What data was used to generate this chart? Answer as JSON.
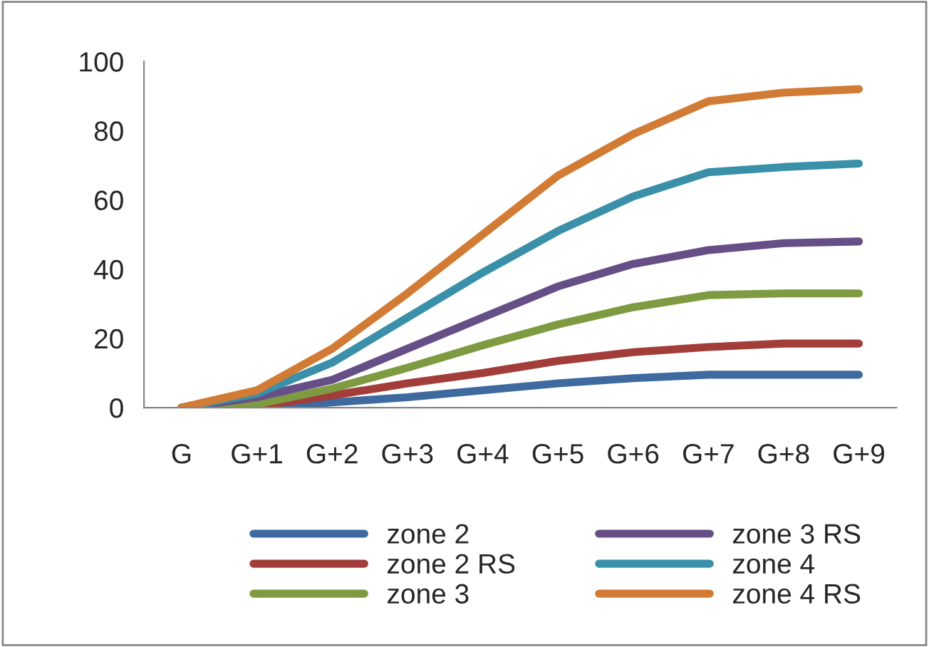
{
  "chart_data": {
    "type": "line",
    "categories": [
      "G",
      "G+1",
      "G+2",
      "G+3",
      "G+4",
      "G+5",
      "G+6",
      "G+7",
      "G+8",
      "G+9"
    ],
    "ylim": [
      0,
      100
    ],
    "yticks": [
      0,
      20,
      40,
      60,
      80,
      100
    ],
    "grid": false,
    "legend": "bottom",
    "marker": "none",
    "line_style": "solid",
    "series": [
      {
        "name": "zone 2",
        "color": "#3f6aa0",
        "values": [
          0,
          0,
          1.5,
          3,
          5,
          7,
          8.5,
          9.5,
          9.5,
          9.5
        ]
      },
      {
        "name": "zone 2 RS",
        "color": "#a33d3a",
        "values": [
          0,
          0.5,
          3.5,
          7,
          10,
          13.5,
          16,
          17.5,
          18.5,
          18.5
        ]
      },
      {
        "name": "zone 3",
        "color": "#7f9b42",
        "values": [
          0,
          1,
          5.5,
          11.5,
          18,
          24,
          29,
          32.5,
          33,
          33
        ]
      },
      {
        "name": "zone 3 RS",
        "color": "#664f86",
        "values": [
          0,
          3,
          8,
          17,
          26,
          35,
          41.5,
          45.5,
          47.5,
          48
        ]
      },
      {
        "name": "zone 4",
        "color": "#3990a8",
        "values": [
          0,
          4,
          13,
          26,
          39,
          51,
          61,
          68,
          69.5,
          70.5
        ]
      },
      {
        "name": "zone 4 RS",
        "color": "#d27b35",
        "values": [
          0,
          5,
          17,
          33,
          50,
          67,
          79,
          88.5,
          91,
          92
        ]
      }
    ]
  }
}
